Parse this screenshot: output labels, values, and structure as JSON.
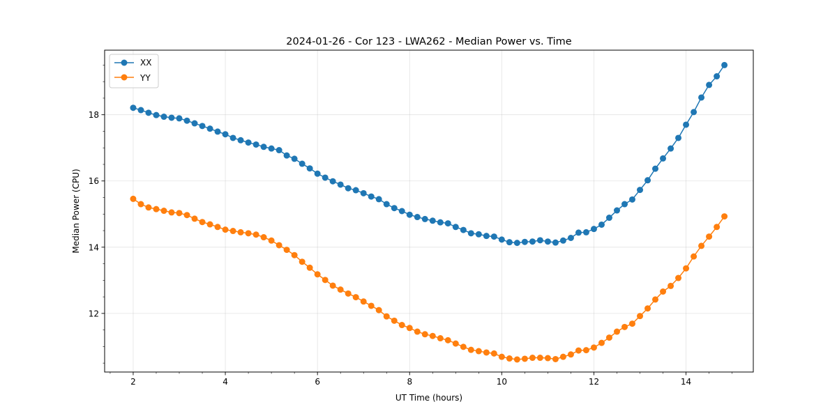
{
  "chart_data": {
    "type": "line",
    "title": "2024-01-26 - Cor 123 - LWA262 - Median Power vs. Time",
    "xlabel": "UT Time (hours)",
    "ylabel": "Median Power (CPU)",
    "xlim": [
      1.38,
      15.46
    ],
    "ylim": [
      10.23,
      19.95
    ],
    "xticks": [
      2,
      4,
      6,
      8,
      10,
      12,
      14
    ],
    "yticks": [
      12,
      14,
      16,
      18
    ],
    "grid": true,
    "legend_position": "top-left",
    "x": [
      2.0,
      2.167,
      2.333,
      2.5,
      2.667,
      2.833,
      3.0,
      3.167,
      3.333,
      3.5,
      3.667,
      3.833,
      4.0,
      4.167,
      4.333,
      4.5,
      4.667,
      4.833,
      5.0,
      5.167,
      5.333,
      5.5,
      5.667,
      5.833,
      6.0,
      6.167,
      6.333,
      6.5,
      6.667,
      6.833,
      7.0,
      7.167,
      7.333,
      7.5,
      7.667,
      7.833,
      8.0,
      8.167,
      8.333,
      8.5,
      8.667,
      8.833,
      9.0,
      9.167,
      9.333,
      9.5,
      9.667,
      9.833,
      10.0,
      10.167,
      10.333,
      10.5,
      10.667,
      10.833,
      11.0,
      11.167,
      11.333,
      11.5,
      11.667,
      11.833,
      12.0,
      12.167,
      12.333,
      12.5,
      12.667,
      12.833,
      13.0,
      13.167,
      13.333,
      13.5,
      13.667,
      13.833,
      14.0,
      14.167,
      14.333,
      14.5,
      14.667,
      14.833
    ],
    "series": [
      {
        "name": "XX",
        "color": "#1f77b4",
        "values": [
          18.21,
          18.14,
          18.06,
          17.99,
          17.94,
          17.91,
          17.89,
          17.82,
          17.74,
          17.66,
          17.58,
          17.49,
          17.41,
          17.3,
          17.23,
          17.16,
          17.1,
          17.03,
          16.98,
          16.93,
          16.77,
          16.67,
          16.52,
          16.38,
          16.22,
          16.1,
          15.99,
          15.89,
          15.78,
          15.72,
          15.63,
          15.53,
          15.45,
          15.3,
          15.18,
          15.09,
          14.98,
          14.91,
          14.85,
          14.8,
          14.75,
          14.72,
          14.61,
          14.52,
          14.42,
          14.39,
          14.34,
          14.32,
          14.23,
          14.15,
          14.13,
          14.16,
          14.17,
          14.21,
          14.17,
          14.14,
          14.2,
          14.28,
          14.44,
          14.45,
          14.55,
          14.68,
          14.89,
          15.11,
          15.3,
          15.44,
          15.73,
          16.02,
          16.37,
          16.68,
          16.98,
          17.3,
          17.7,
          18.08,
          18.52,
          18.9,
          19.16,
          19.5
        ]
      },
      {
        "name": "YY",
        "color": "#ff7f0e",
        "values": [
          15.46,
          15.3,
          15.2,
          15.15,
          15.1,
          15.05,
          15.03,
          14.97,
          14.86,
          14.76,
          14.69,
          14.61,
          14.53,
          14.49,
          14.45,
          14.42,
          14.38,
          14.3,
          14.2,
          14.06,
          13.92,
          13.76,
          13.56,
          13.38,
          13.18,
          13.01,
          12.84,
          12.72,
          12.6,
          12.49,
          12.36,
          12.23,
          12.1,
          11.91,
          11.78,
          11.65,
          11.56,
          11.45,
          11.37,
          11.32,
          11.25,
          11.19,
          11.09,
          10.99,
          10.9,
          10.86,
          10.82,
          10.79,
          10.69,
          10.64,
          10.61,
          10.63,
          10.66,
          10.66,
          10.65,
          10.62,
          10.69,
          10.76,
          10.88,
          10.89,
          10.97,
          11.11,
          11.27,
          11.45,
          11.59,
          11.69,
          11.92,
          12.15,
          12.42,
          12.66,
          12.83,
          13.07,
          13.36,
          13.72,
          14.04,
          14.32,
          14.61,
          14.93
        ]
      }
    ]
  }
}
